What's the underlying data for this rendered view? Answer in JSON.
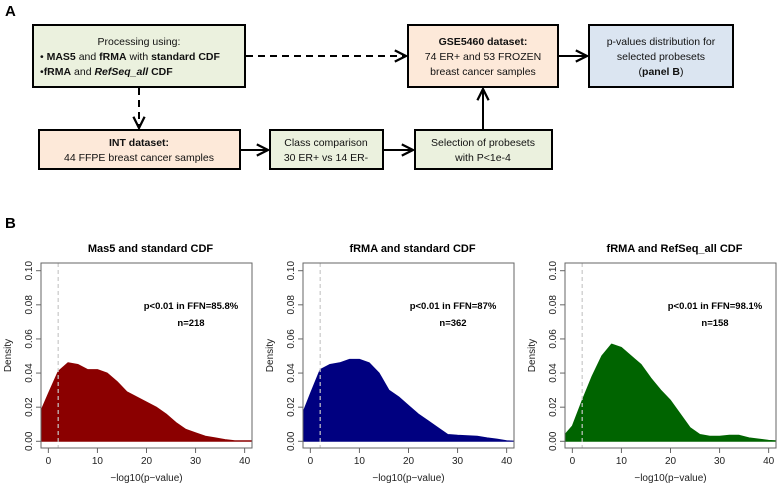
{
  "panels": {
    "a": "A",
    "b": "B"
  },
  "diagram": {
    "processing": {
      "line1": "Processing using:",
      "line2": [
        {
          "t": "• ",
          "b": false
        },
        {
          "t": "MAS5",
          "b": true
        },
        {
          "t": " and ",
          "b": false
        },
        {
          "t": "fRMA",
          "b": true
        },
        {
          "t": " with ",
          "b": false
        },
        {
          "t": "standard CDF",
          "b": true
        }
      ],
      "line3": [
        {
          "t": "•",
          "b": false
        },
        {
          "t": "fRMA",
          "b": true
        },
        {
          "t": " and ",
          "b": false
        },
        {
          "t": "RefSeq_all",
          "b": true,
          "i": true
        },
        {
          "t": " CDF",
          "b": true
        }
      ]
    },
    "int_dataset": {
      "title": "INT dataset:",
      "text": "44 FFPE breast cancer samples"
    },
    "class_comparison": {
      "line1": "Class comparison",
      "line2": "30  ER+ vs 14 ER-"
    },
    "selection": {
      "line1": "Selection of probesets",
      "line2": "with P<1e-4"
    },
    "gse": {
      "title": "GSE5460 dataset:",
      "line1": "74 ER+ and 53 FROZEN",
      "line2": "breast cancer samples"
    },
    "pvalues": {
      "line1": "p-values distribution for",
      "line2": "selected probesets",
      "line3_pre": "(",
      "line3_bold": "panel B",
      "line3_post": ")"
    },
    "colors": {
      "green": "#ebf1de",
      "peach": "#fde9d9",
      "blue": "#dbe5f1"
    }
  },
  "chart_data": [
    {
      "type": "area",
      "title": "Mas5 and standard CDF",
      "xlabel": "−log10(p−value)",
      "ylabel": "Density",
      "xlim": [
        -1.5,
        41.5
      ],
      "ylim": [
        0,
        0.1
      ],
      "xticks": [
        0,
        10,
        20,
        30,
        40
      ],
      "yticks": [
        "0.00",
        "0.02",
        "0.04",
        "0.06",
        "0.08",
        "0.10"
      ],
      "annotation": "p<0.01 in FFN=85.8%",
      "n_label": "n=218",
      "threshold_x": 2,
      "color": "#8b0000",
      "x": [
        -1.5,
        0,
        2,
        4,
        6,
        8,
        10,
        12,
        14,
        16,
        18,
        20,
        22,
        24,
        26,
        28,
        30,
        32,
        34,
        36,
        38,
        40,
        41.5
      ],
      "y": [
        0.018,
        0.028,
        0.041,
        0.046,
        0.045,
        0.042,
        0.042,
        0.04,
        0.035,
        0.029,
        0.026,
        0.023,
        0.02,
        0.016,
        0.011,
        0.007,
        0.005,
        0.003,
        0.002,
        0.001,
        0.0003,
        0.0003,
        0.0003
      ]
    },
    {
      "type": "area",
      "title": "fRMA and standard CDF",
      "xlabel": "−log10(p−value)",
      "ylabel": "Density",
      "xlim": [
        -1.5,
        41.5
      ],
      "ylim": [
        0,
        0.1
      ],
      "xticks": [
        0,
        10,
        20,
        30,
        40
      ],
      "yticks": [
        "0.00",
        "0.02",
        "0.04",
        "0.06",
        "0.08",
        "0.10"
      ],
      "annotation": "p<0.01 in FFN=87%",
      "n_label": "n=362",
      "threshold_x": 2,
      "color": "#000080",
      "x": [
        -1.5,
        0,
        2,
        4,
        6,
        8,
        10,
        12,
        14,
        16,
        18,
        20,
        22,
        24,
        26,
        28,
        30,
        32,
        34,
        36,
        38,
        40,
        41.5
      ],
      "y": [
        0.017,
        0.028,
        0.042,
        0.045,
        0.046,
        0.048,
        0.048,
        0.046,
        0.04,
        0.03,
        0.026,
        0.021,
        0.016,
        0.012,
        0.008,
        0.004,
        0.0035,
        0.0033,
        0.003,
        0.002,
        0.0013,
        0.0003,
        0.0001
      ]
    },
    {
      "type": "area",
      "title": "fRMA and RefSeq_all CDF",
      "xlabel": "−log10(p−value)",
      "ylabel": "Density",
      "xlim": [
        -1.5,
        41.5
      ],
      "ylim": [
        0,
        0.1
      ],
      "xticks": [
        0,
        10,
        20,
        30,
        40
      ],
      "yticks": [
        "0.00",
        "0.02",
        "0.04",
        "0.06",
        "0.08",
        "0.10"
      ],
      "annotation": "p<0.01 in FFN=98.1%",
      "n_label": "n=158",
      "threshold_x": 2,
      "color": "#006400",
      "x": [
        -1.5,
        0,
        2,
        4,
        6,
        8,
        10,
        12,
        14,
        16,
        18,
        20,
        22,
        24,
        26,
        28,
        30,
        32,
        34,
        36,
        38,
        40,
        41.5
      ],
      "y": [
        0.004,
        0.009,
        0.024,
        0.038,
        0.05,
        0.057,
        0.055,
        0.05,
        0.045,
        0.037,
        0.03,
        0.024,
        0.016,
        0.008,
        0.004,
        0.003,
        0.003,
        0.0035,
        0.0035,
        0.002,
        0.0013,
        0.0005,
        0.0003
      ]
    }
  ]
}
